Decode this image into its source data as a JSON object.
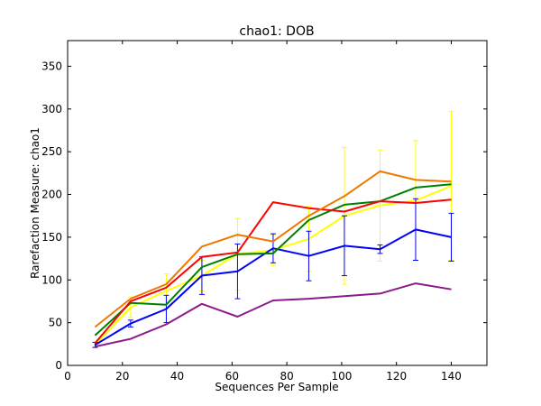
{
  "chart_data": {
    "type": "line",
    "title": "chao1: DOB",
    "xlabel": "Sequences Per Sample",
    "ylabel": "Rarefaction Measure: chao1",
    "xlim": [
      0,
      153
    ],
    "ylim": [
      0,
      380
    ],
    "xticks": [
      0,
      20,
      40,
      60,
      80,
      100,
      120,
      140
    ],
    "yticks": [
      0,
      50,
      100,
      150,
      200,
      250,
      300,
      350
    ],
    "grid": false,
    "legend": "none",
    "x": [
      10,
      23,
      36,
      49,
      62,
      75,
      88,
      101,
      114,
      127,
      140
    ],
    "series": [
      {
        "color": "#ffff00",
        "values": [
          24,
          68,
          87,
          105,
          130,
          135,
          148,
          175,
          187,
          193,
          210
        ],
        "error": [
          3,
          12,
          20,
          18,
          42,
          18,
          38,
          80,
          65,
          70,
          87
        ]
      },
      {
        "color": "#0000ff",
        "values": [
          24,
          49,
          66,
          105,
          110,
          137,
          128,
          140,
          136,
          159,
          150
        ],
        "error": [
          3,
          4,
          16,
          22,
          32,
          17,
          29,
          35,
          5,
          36,
          28
        ]
      },
      {
        "color": "#008000",
        "values": [
          35,
          73,
          71,
          115,
          130,
          131,
          170,
          188,
          192,
          208,
          212
        ]
      },
      {
        "color": "#ff0000",
        "values": [
          26,
          75,
          91,
          127,
          132,
          191,
          184,
          180,
          192,
          190,
          194
        ]
      },
      {
        "color": "#f07800",
        "values": [
          45,
          78,
          95,
          139,
          153,
          145,
          175,
          198,
          227,
          217,
          215
        ]
      },
      {
        "color": "#8b1a8b",
        "values": [
          22,
          31,
          48,
          72,
          57,
          76,
          78,
          81,
          84,
          96,
          89
        ]
      }
    ]
  }
}
